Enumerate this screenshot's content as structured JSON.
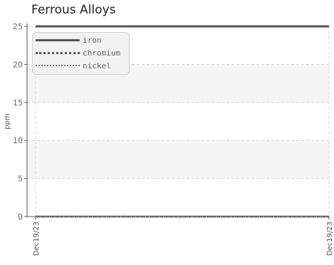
{
  "chart_data": {
    "type": "line",
    "title": "Ferrous Alloys",
    "xlabel": "",
    "ylabel": "ppm",
    "x": [
      "Dec19/23",
      "Dec19/23"
    ],
    "ylim": [
      0,
      25
    ],
    "yticks": [
      0,
      5,
      10,
      15,
      20,
      25
    ],
    "grid": true,
    "legend_position": "top-left",
    "series": [
      {
        "name": "iron",
        "values": [
          25,
          25
        ],
        "color": "#555555",
        "style": "solid"
      },
      {
        "name": "chromium",
        "values": [
          0,
          0
        ],
        "color": "#555555",
        "style": "dense-dotted"
      },
      {
        "name": "nickel",
        "values": [
          0,
          0
        ],
        "color": "#666666",
        "style": "dotted"
      }
    ]
  }
}
